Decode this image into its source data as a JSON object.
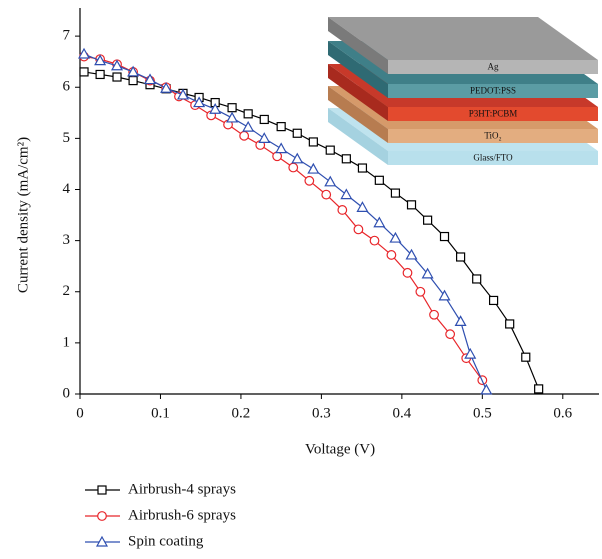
{
  "chart_data": {
    "type": "line",
    "xlabel": "Voltage (V)",
    "ylabel": "Current density (mA/cm²)",
    "xlim": [
      0,
      0.645
    ],
    "ylim": [
      0,
      7.55
    ],
    "xticks": [
      0,
      0.1,
      0.2,
      0.3,
      0.4,
      0.5,
      0.6
    ],
    "yticks": [
      0,
      1,
      2,
      3,
      4,
      5,
      6,
      7
    ],
    "series": [
      {
        "name": "Airbrush-4 sprays",
        "color": "#000000",
        "marker": "square",
        "x": [
          0.005,
          0.025,
          0.046,
          0.066,
          0.087,
          0.107,
          0.128,
          0.148,
          0.168,
          0.189,
          0.209,
          0.229,
          0.25,
          0.27,
          0.29,
          0.311,
          0.331,
          0.351,
          0.372,
          0.392,
          0.412,
          0.432,
          0.453,
          0.473,
          0.493,
          0.514,
          0.534,
          0.554,
          0.57
        ],
        "values": [
          6.3,
          6.25,
          6.2,
          6.13,
          6.05,
          5.97,
          5.88,
          5.8,
          5.7,
          5.6,
          5.48,
          5.37,
          5.23,
          5.1,
          4.93,
          4.77,
          4.6,
          4.42,
          4.18,
          3.93,
          3.7,
          3.4,
          3.08,
          2.68,
          2.25,
          1.83,
          1.37,
          0.72,
          0.1
        ]
      },
      {
        "name": "Airbrush-6 sprays",
        "color": "#e8262b",
        "marker": "circle",
        "x": [
          0.005,
          0.025,
          0.046,
          0.066,
          0.087,
          0.107,
          0.123,
          0.143,
          0.163,
          0.184,
          0.204,
          0.224,
          0.245,
          0.265,
          0.285,
          0.306,
          0.326,
          0.346,
          0.366,
          0.387,
          0.407,
          0.423,
          0.44,
          0.46,
          0.48,
          0.5
        ],
        "values": [
          6.6,
          6.55,
          6.45,
          6.3,
          6.13,
          6.0,
          5.82,
          5.65,
          5.45,
          5.27,
          5.05,
          4.87,
          4.65,
          4.43,
          4.17,
          3.9,
          3.6,
          3.22,
          3.0,
          2.72,
          2.37,
          2.0,
          1.55,
          1.17,
          0.7,
          0.27
        ]
      },
      {
        "name": "Spin coating",
        "color": "#2f4fb0",
        "marker": "triangle",
        "x": [
          0.005,
          0.025,
          0.046,
          0.066,
          0.087,
          0.107,
          0.128,
          0.148,
          0.168,
          0.189,
          0.209,
          0.229,
          0.25,
          0.27,
          0.29,
          0.311,
          0.331,
          0.351,
          0.372,
          0.392,
          0.412,
          0.432,
          0.453,
          0.473,
          0.485,
          0.505
        ],
        "values": [
          6.65,
          6.52,
          6.42,
          6.3,
          6.15,
          5.98,
          5.85,
          5.7,
          5.57,
          5.4,
          5.22,
          5.0,
          4.8,
          4.6,
          4.4,
          4.15,
          3.9,
          3.65,
          3.35,
          3.05,
          2.72,
          2.35,
          1.92,
          1.42,
          0.78,
          0.08
        ]
      }
    ]
  },
  "inset": {
    "layers": [
      "Ag",
      "PEDOT:PSS",
      "P3HT:PCBM",
      "TiO₂",
      "Glass/FTO"
    ]
  }
}
